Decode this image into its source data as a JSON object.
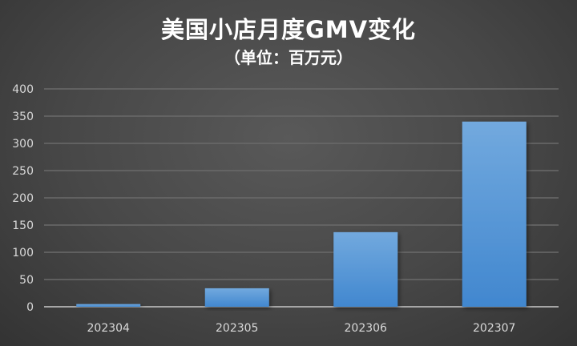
{
  "chart_data": {
    "type": "bar",
    "title": "美国小店月度GMV变化",
    "subtitle": "（单位：百万元）",
    "categories": [
      "202304",
      "202305",
      "202306",
      "202307"
    ],
    "values": [
      5,
      34,
      137,
      340
    ],
    "ylim": [
      0,
      400
    ],
    "yticks": [
      0,
      50,
      100,
      150,
      200,
      250,
      300,
      350,
      400
    ],
    "grid": true,
    "legend": "none",
    "colors": {
      "bar_top": "#72a9de",
      "bar_bottom": "#4187cf",
      "grid": "#6a6a6a",
      "axis": "#a6a6a6",
      "text": "#d9d9d9"
    }
  }
}
